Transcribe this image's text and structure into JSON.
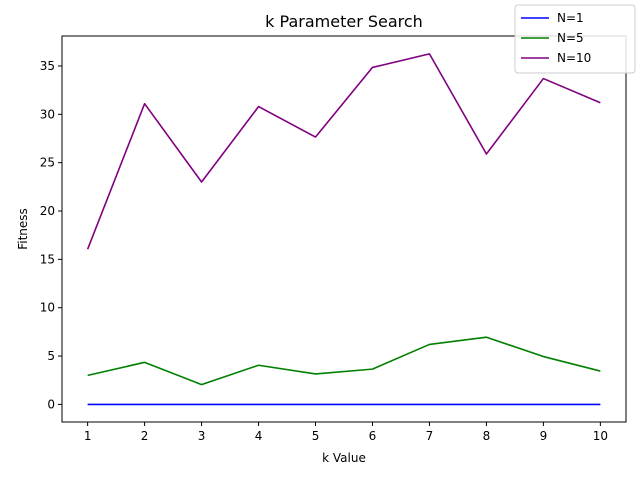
{
  "chart_data": {
    "type": "line",
    "title": "k Parameter Search",
    "xlabel": "k Value",
    "ylabel": "Fitness",
    "x": [
      1,
      2,
      3,
      4,
      5,
      6,
      7,
      8,
      9,
      10
    ],
    "xlim": [
      0.55,
      10.45
    ],
    "ylim": [
      -1.82,
      38.1
    ],
    "xticks": [
      "1",
      "2",
      "3",
      "4",
      "5",
      "6",
      "7",
      "8",
      "9",
      "10"
    ],
    "yticks": [
      0,
      5,
      10,
      15,
      20,
      25,
      30,
      35
    ],
    "ytick_labels": [
      "0",
      "5",
      "10",
      "15",
      "20",
      "25",
      "30",
      "35"
    ],
    "grid": false,
    "legend_position": "top-right",
    "series": [
      {
        "name": "N=1",
        "color": "#0000ff",
        "values": [
          0,
          0,
          0,
          0,
          0,
          0,
          0,
          0,
          0,
          0
        ]
      },
      {
        "name": "N=5",
        "color": "#008000",
        "values": [
          3.0,
          4.35,
          2.05,
          4.05,
          3.15,
          3.65,
          6.2,
          6.95,
          4.95,
          3.45
        ]
      },
      {
        "name": "N=10",
        "color": "#800080",
        "values": [
          16.05,
          31.1,
          23.0,
          30.8,
          27.65,
          34.85,
          36.25,
          25.9,
          33.7,
          31.2
        ]
      }
    ]
  }
}
